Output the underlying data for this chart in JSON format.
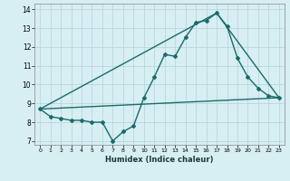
{
  "xlabel": "Humidex (Indice chaleur)",
  "background_color": "#d7eef2",
  "grid_color": "#b8d8dc",
  "line_color": "#1a6b6b",
  "xlim": [
    -0.5,
    23.5
  ],
  "ylim": [
    6.8,
    14.3
  ],
  "yticks": [
    7,
    8,
    9,
    10,
    11,
    12,
    13,
    14
  ],
  "xticks": [
    0,
    1,
    2,
    3,
    4,
    5,
    6,
    7,
    8,
    9,
    10,
    11,
    12,
    13,
    14,
    15,
    16,
    17,
    18,
    19,
    20,
    21,
    22,
    23
  ],
  "series": [
    {
      "x": [
        0,
        1,
        2,
        3,
        4,
        5,
        6,
        7,
        8,
        9,
        10,
        11,
        12,
        13,
        14,
        15,
        16,
        17,
        18,
        19,
        20,
        21,
        22,
        23
      ],
      "y": [
        8.7,
        8.3,
        8.2,
        8.1,
        8.1,
        8.0,
        8.0,
        7.0,
        7.5,
        7.8,
        9.3,
        10.4,
        11.6,
        11.5,
        12.5,
        13.3,
        13.4,
        13.8,
        13.1,
        11.4,
        10.4,
        9.8,
        9.4,
        9.3
      ],
      "marker": "D",
      "markersize": 2.0,
      "linewidth": 1.0
    },
    {
      "x": [
        0,
        23
      ],
      "y": [
        8.7,
        9.3
      ],
      "marker": null,
      "linewidth": 1.0
    },
    {
      "x": [
        0,
        17,
        23
      ],
      "y": [
        8.7,
        13.8,
        9.3
      ],
      "marker": null,
      "linewidth": 1.0
    }
  ]
}
